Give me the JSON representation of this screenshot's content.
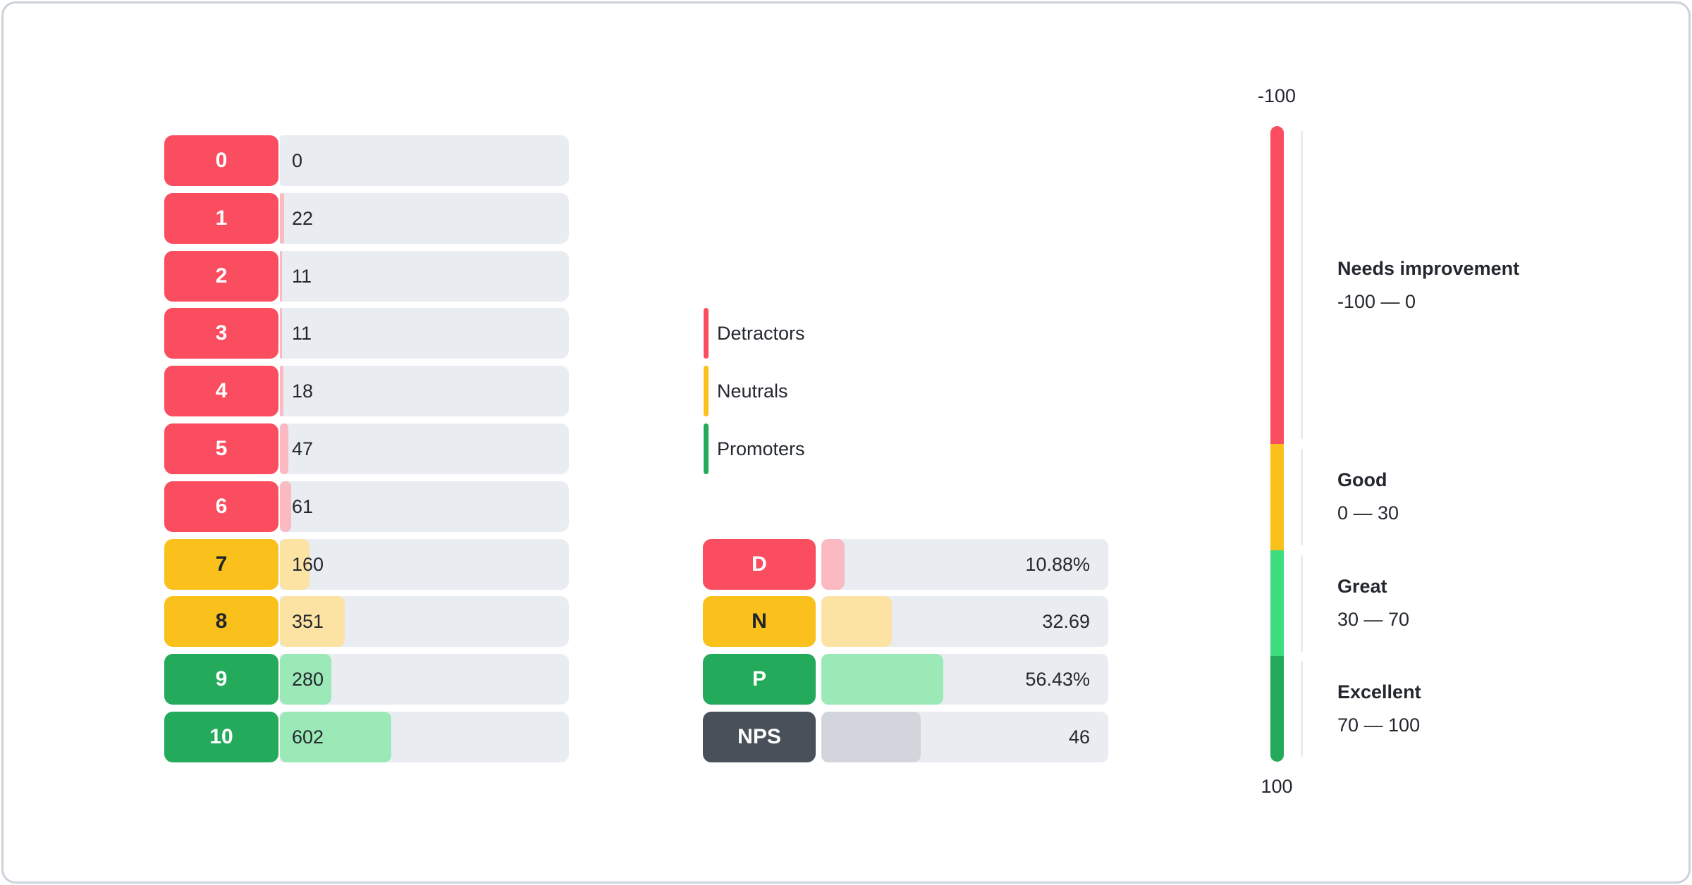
{
  "colors": {
    "detractor": "#fb4d60",
    "neutral": "#fac11c",
    "promoter": "#23ab5b",
    "nps": "#48505a",
    "detractor_light": "#fbb9c2",
    "neutral_light": "#fce2a3",
    "promoter_light": "#9be9b7",
    "nps_light": "#d2d6dc",
    "track": "#e9ecf1",
    "gauge_great_green": "#3edd7d",
    "text": "#24282e",
    "card_border": "#ccd2d9"
  },
  "distribution": {
    "rows": [
      {
        "score": "0",
        "count": "0",
        "category": "detractor",
        "fill_pct": 0
      },
      {
        "score": "1",
        "count": "22",
        "category": "detractor",
        "fill_pct": 1.41
      },
      {
        "score": "2",
        "count": "11",
        "category": "detractor",
        "fill_pct": 0.7
      },
      {
        "score": "3",
        "count": "11",
        "category": "detractor",
        "fill_pct": 0.7
      },
      {
        "score": "4",
        "count": "18",
        "category": "detractor",
        "fill_pct": 1.15
      },
      {
        "score": "5",
        "count": "47",
        "category": "detractor",
        "fill_pct": 3.01
      },
      {
        "score": "6",
        "count": "61",
        "category": "detractor",
        "fill_pct": 3.9
      },
      {
        "score": "7",
        "count": "160",
        "category": "neutral",
        "fill_pct": 10.24
      },
      {
        "score": "8",
        "count": "351",
        "category": "neutral",
        "fill_pct": 22.46
      },
      {
        "score": "9",
        "count": "280",
        "category": "promoter",
        "fill_pct": 17.91
      },
      {
        "score": "10",
        "count": "602",
        "category": "promoter",
        "fill_pct": 38.52
      }
    ]
  },
  "legend": {
    "items": [
      {
        "label": "Detractors",
        "category": "detractor"
      },
      {
        "label": "Neutrals",
        "category": "neutral"
      },
      {
        "label": "Promoters",
        "category": "promoter"
      }
    ]
  },
  "summary": {
    "rows": [
      {
        "label": "D",
        "value": "10.88%",
        "category": "detractor",
        "fill_pct": 8.2
      },
      {
        "label": "N",
        "value": "32.69",
        "category": "neutral",
        "fill_pct": 24.6
      },
      {
        "label": "P",
        "value": "56.43%",
        "category": "promoter",
        "fill_pct": 42.4
      },
      {
        "label": "NPS",
        "value": "46",
        "category": "nps",
        "fill_pct": 34.6
      }
    ]
  },
  "gauge": {
    "top_label": "-100",
    "bottom_label": "100",
    "zones": [
      {
        "name": "Needs improvement",
        "range": "-100 — 0",
        "color": "#fb4d60",
        "size_pct": 50.0
      },
      {
        "name": "Good",
        "range": "0 — 30",
        "color": "#fac11c",
        "size_pct": 16.7
      },
      {
        "name": "Great",
        "range": "30 — 70",
        "color": "#3edd7d",
        "size_pct": 16.7
      },
      {
        "name": "Excellent",
        "range": "70 — 100",
        "color": "#23ab5b",
        "size_pct": 16.6
      }
    ]
  },
  "chart_data": {
    "type": "bar",
    "orientation": "horizontal",
    "categories": [
      "0",
      "1",
      "2",
      "3",
      "4",
      "5",
      "6",
      "7",
      "8",
      "9",
      "10"
    ],
    "values": [
      0,
      22,
      11,
      11,
      18,
      47,
      61,
      160,
      351,
      280,
      602
    ],
    "series_groups": [
      {
        "name": "Detractors",
        "scores": [
          0,
          1,
          2,
          3,
          4,
          5,
          6
        ]
      },
      {
        "name": "Neutrals",
        "scores": [
          7,
          8
        ]
      },
      {
        "name": "Promoters",
        "scores": [
          9,
          10
        ]
      }
    ],
    "legend_entries": [
      "Detractors",
      "Neutrals",
      "Promoters"
    ],
    "summary": {
      "detractors": "10.88%",
      "neutrals": "32.69",
      "promoters": "56.43%",
      "nps": "46"
    },
    "gauge": {
      "min": -100,
      "max": 100,
      "zones": [
        {
          "label": "Needs improvement",
          "from": -100,
          "to": 0
        },
        {
          "label": "Good",
          "from": 0,
          "to": 30
        },
        {
          "label": "Great",
          "from": 30,
          "to": 70
        },
        {
          "label": "Excellent",
          "from": 70,
          "to": 100
        }
      ]
    }
  }
}
